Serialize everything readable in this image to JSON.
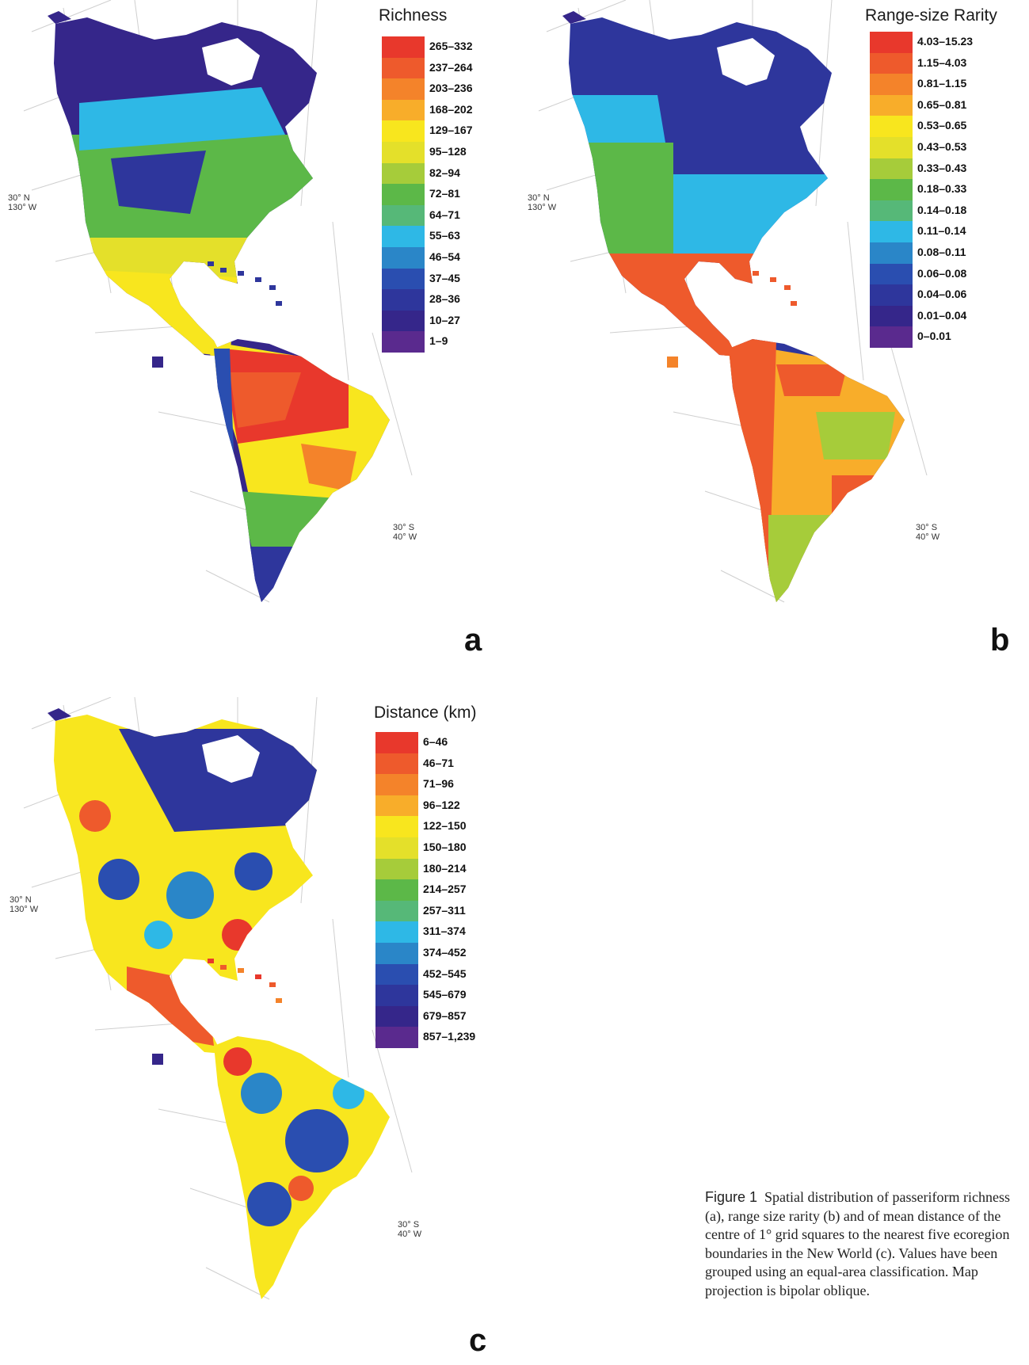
{
  "panels": [
    {
      "id": "a",
      "legend_title": "Richness",
      "classes": [
        "265–332",
        "237–264",
        "203–236",
        "168–202",
        "129–167",
        "95–128",
        "82–94",
        "72–81",
        "64–71",
        "55–63",
        "46–54",
        "37–45",
        "28–36",
        "10–27",
        "1–9"
      ],
      "coord_north": [
        "30° N",
        "130° W"
      ],
      "coord_south": [
        "30° S",
        "40° W"
      ],
      "letter": "a"
    },
    {
      "id": "b",
      "legend_title": "Range-size Rarity",
      "classes": [
        "4.03–15.23",
        "1.15–4.03",
        "0.81–1.15",
        "0.65–0.81",
        "0.53–0.65",
        "0.43–0.53",
        "0.33–0.43",
        "0.18–0.33",
        "0.14–0.18",
        "0.11–0.14",
        "0.08–0.11",
        "0.06–0.08",
        "0.04–0.06",
        "0.01–0.04",
        "0–0.01"
      ],
      "coord_north": [
        "30° N",
        "130° W"
      ],
      "coord_south": [
        "30° S",
        "40° W"
      ],
      "letter": "b"
    },
    {
      "id": "c",
      "legend_title": "Distance (km)",
      "classes": [
        "6–46",
        "46–71",
        "71–96",
        "96–122",
        "122–150",
        "150–180",
        "180–214",
        "214–257",
        "257–311",
        "311–374",
        "374–452",
        "452–545",
        "545–679",
        "679–857",
        "857–1,239"
      ],
      "coord_north": [
        "30° N",
        "130° W"
      ],
      "coord_south": [
        "30° S",
        "40° W"
      ],
      "letter": "c"
    }
  ],
  "palette": [
    "#e8382c",
    "#ee5a2c",
    "#f4832a",
    "#f8ad2a",
    "#f8e61e",
    "#e4e02a",
    "#a6cc3a",
    "#5cb848",
    "#56b878",
    "#2eb8e6",
    "#2a86c8",
    "#2a4eb0",
    "#2e369c",
    "#35268a",
    "#5a2a8e"
  ],
  "caption": {
    "label": "Figure 1",
    "text": "Spatial distribution of passeriform richness (a), range size rarity (b) and of mean distance of the centre of 1° grid squares to the nearest five ecoregion boundaries in the New World (c). Values have been grouped using an equal-area classification. Map projection is bipolar oblique."
  }
}
